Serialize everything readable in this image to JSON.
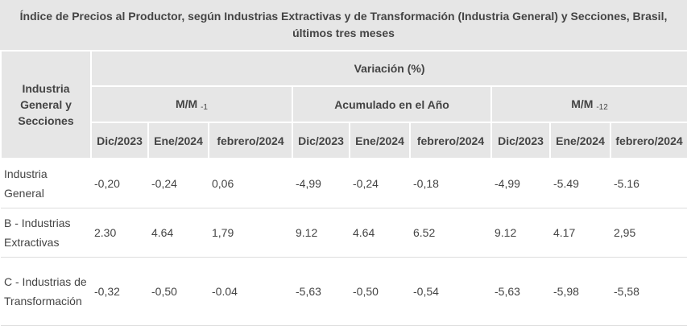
{
  "title": "Índice de Precios al Productor, según Industrias Extractivas y de Transformación (Industria General) y Secciones, Brasil, últimos tres meses",
  "header": {
    "row_header": "Industria General y Secciones",
    "variation": "Variación (%)",
    "groups": [
      {
        "label": "M/M",
        "sub": "-1"
      },
      {
        "label": "Acumulado en el Año",
        "sub": ""
      },
      {
        "label": "M/M",
        "sub": "-12"
      }
    ],
    "months": [
      "Dic/2023",
      "Ene/2024",
      "febrero/2024",
      "Dic/2023",
      "Ene/2024",
      "febrero/2024",
      "Dic/2023",
      "Ene/2024",
      "febrero/2024"
    ]
  },
  "rows": [
    {
      "label": "Industria General",
      "values": [
        "-0,20",
        "-0,24",
        "0,06",
        "-4,99",
        "-0,24",
        "-0,18",
        "-4,99",
        "-5.49",
        "-5.16"
      ]
    },
    {
      "label": "B - Industrias Extractivas",
      "values": [
        "2.30",
        "4.64",
        "1,79",
        "9.12",
        "4.64",
        "6.52",
        "9.12",
        "4.17",
        "2,95"
      ]
    },
    {
      "label": "C - Industrias de Transformación",
      "values": [
        "-0,32",
        "-0,50",
        "-0.04",
        "-5,63",
        "-0,50",
        "-0,54",
        "-5,63",
        "-5,98",
        "-5,58"
      ]
    }
  ]
}
